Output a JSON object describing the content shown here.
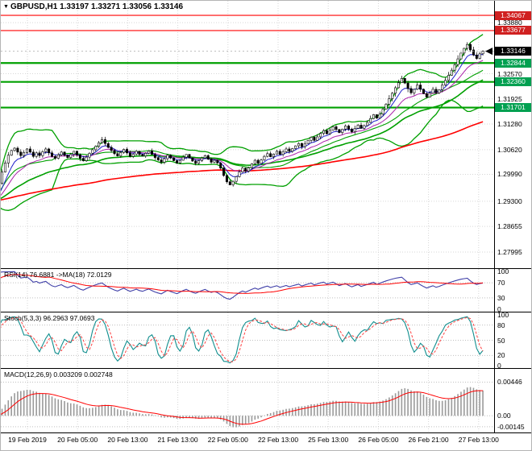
{
  "title": {
    "marker": "▼",
    "symbol_tf": "GBPUSD,H1",
    "quote_text": "1.33197 1.33271 1.33056 1.33146"
  },
  "colors": {
    "bull": "#FFFFFF",
    "bear": "#000000",
    "candle_border": "#000000",
    "bb": "#00A000",
    "ma_red": "#FF0000",
    "ma_green": "#00A000",
    "ma_blue": "#2020CC",
    "ma_purple": "#AA22AA",
    "level_red": "#FF3030",
    "level_green": "#00A000",
    "badge_red": "#D02020",
    "badge_green": "#00A050",
    "badge_black": "#000000",
    "rsi": "#4040A8",
    "rsi_ma": "#FF0000",
    "stoch_k": "#108E8E",
    "stoch_d": "#FF4040",
    "macd_hist": "#9A9A9A",
    "macd_signal": "#FF0000",
    "grid": "#D6D6D6",
    "dotted": "#C0C0C0",
    "axis_line": "#000000",
    "bg": "#FFFFFF",
    "bid_line": "#AAAAAA"
  },
  "chart_data": {
    "type": "candlestick",
    "title": "GBPUSD,H1",
    "ohlc_quote": {
      "open": 1.33197,
      "high": 1.33271,
      "low": 1.33056,
      "close": 1.33146
    },
    "current_price": "1.33146",
    "current_price_value": 1.33146,
    "price_range": {
      "min": 1.27583,
      "max": 1.34439
    },
    "price_ticks": [
      "1.33880",
      "1.32570",
      "1.31925",
      "1.31280",
      "1.30620",
      "1.29990",
      "1.29300",
      "1.28655",
      "1.27995"
    ],
    "levels": [
      {
        "value": "1.34067",
        "price": 1.34067,
        "type": "resistance",
        "color": "red"
      },
      {
        "value": "1.33677",
        "price": 1.33677,
        "type": "resistance",
        "color": "red"
      },
      {
        "value": "1.32844",
        "price": 1.32844,
        "type": "support",
        "color": "green"
      },
      {
        "value": "1.32360",
        "price": 1.3236,
        "type": "support",
        "color": "green"
      },
      {
        "value": "1.31701",
        "price": 1.31701,
        "type": "support",
        "color": "green"
      }
    ],
    "x_labels": [
      "19 Feb 2019",
      "20 Feb 05:00",
      "20 Feb 13:00",
      "21 Feb 13:00",
      "22 Feb 05:00",
      "22 Feb 13:00",
      "25 Feb 13:00",
      "26 Feb 05:00",
      "26 Feb 21:00",
      "27 Feb 13:00"
    ],
    "open_first": 1.2928,
    "closes": [
      1.2932,
      1.2948,
      1.2976,
      1.3005,
      1.3028,
      1.3048,
      1.306,
      1.3066,
      1.3056,
      1.3047,
      1.3055,
      1.3064,
      1.3056,
      1.3045,
      1.3054,
      1.3047,
      1.3057,
      1.3064,
      1.3054,
      1.3045,
      1.304,
      1.3049,
      1.3056,
      1.3048,
      1.3042,
      1.305,
      1.3058,
      1.3049,
      1.304,
      1.3034,
      1.3043,
      1.3053,
      1.3062,
      1.3071,
      1.308,
      1.3088,
      1.3078,
      1.3068,
      1.306,
      1.3052,
      1.3046,
      1.3055,
      1.3063,
      1.3054,
      1.3045,
      1.3051,
      1.3058,
      1.305,
      1.3046,
      1.3053,
      1.3059,
      1.305,
      1.3042,
      1.3036,
      1.303,
      1.3039,
      1.3048,
      1.3041,
      1.3034,
      1.3028,
      1.3035,
      1.3043,
      1.305,
      1.3041,
      1.3033,
      1.3027,
      1.3034,
      1.3041,
      1.3047,
      1.3038,
      1.303,
      1.3035,
      1.3028,
      1.3015,
      1.2996,
      1.298,
      1.2972,
      1.2981,
      1.2993,
      1.3005,
      1.3015,
      1.3007,
      1.3016,
      1.3026,
      1.3035,
      1.3027,
      1.3036,
      1.3045,
      1.3052,
      1.3044,
      1.3051,
      1.3058,
      1.305,
      1.3057,
      1.3064,
      1.3058,
      1.3065,
      1.3072,
      1.3078,
      1.307,
      1.3078,
      1.3086,
      1.3094,
      1.3086,
      1.3095,
      1.3104,
      1.3111,
      1.3103,
      1.3112,
      1.3121,
      1.3114,
      1.3106,
      1.3115,
      1.3123,
      1.3115,
      1.3108,
      1.3117,
      1.3125,
      1.3117,
      1.3124,
      1.3132,
      1.3142,
      1.3152,
      1.3143,
      1.3154,
      1.3166,
      1.3179,
      1.3193,
      1.3207,
      1.3221,
      1.3234,
      1.3245,
      1.3233,
      1.3219,
      1.3208,
      1.3217,
      1.3228,
      1.3217,
      1.3206,
      1.3197,
      1.3207,
      1.3217,
      1.3208,
      1.3216,
      1.3228,
      1.324,
      1.3253,
      1.3266,
      1.328,
      1.3295,
      1.331,
      1.3322,
      1.3332,
      1.3318,
      1.3305,
      1.3296,
      1.3308,
      1.33146
    ],
    "overlays": {
      "bollinger": {
        "period": 20,
        "deviation": 2
      },
      "moving_averages": [
        "red-slow",
        "green-medium",
        "purple-fast",
        "blue-fast"
      ]
    },
    "indicators": {
      "rsi": {
        "label": "RSI(14) 76.6881 ->MA(18) 72.0129",
        "period": 14,
        "ma_period": 18,
        "last": 76.6881,
        "ma_last": 72.0129,
        "ticks": [
          100,
          70,
          30,
          0
        ],
        "levels": [
          70,
          30
        ]
      },
      "stoch": {
        "label": "Stoch(5,3,3) 96.2963 97.0693",
        "k": 5,
        "d": 3,
        "slowing": 3,
        "last_k": 96.2963,
        "last_d": 97.0693,
        "ticks": [
          100,
          80,
          50,
          20,
          0
        ],
        "levels": [
          80,
          50,
          20
        ]
      },
      "macd": {
        "label": "MACD(12,26,9) 0.003209 0.002748",
        "fast": 12,
        "slow": 26,
        "signal": 9,
        "last": 0.003209,
        "signal_last": 0.002748,
        "ticks": [
          {
            "t": "0.00446",
            "v": 0.00446
          },
          {
            "t": "0.00",
            "v": 0
          },
          {
            "t": "-0.00145",
            "v": -0.00145
          }
        ],
        "range": {
          "min": -0.002,
          "max": 0.006
        }
      }
    }
  }
}
